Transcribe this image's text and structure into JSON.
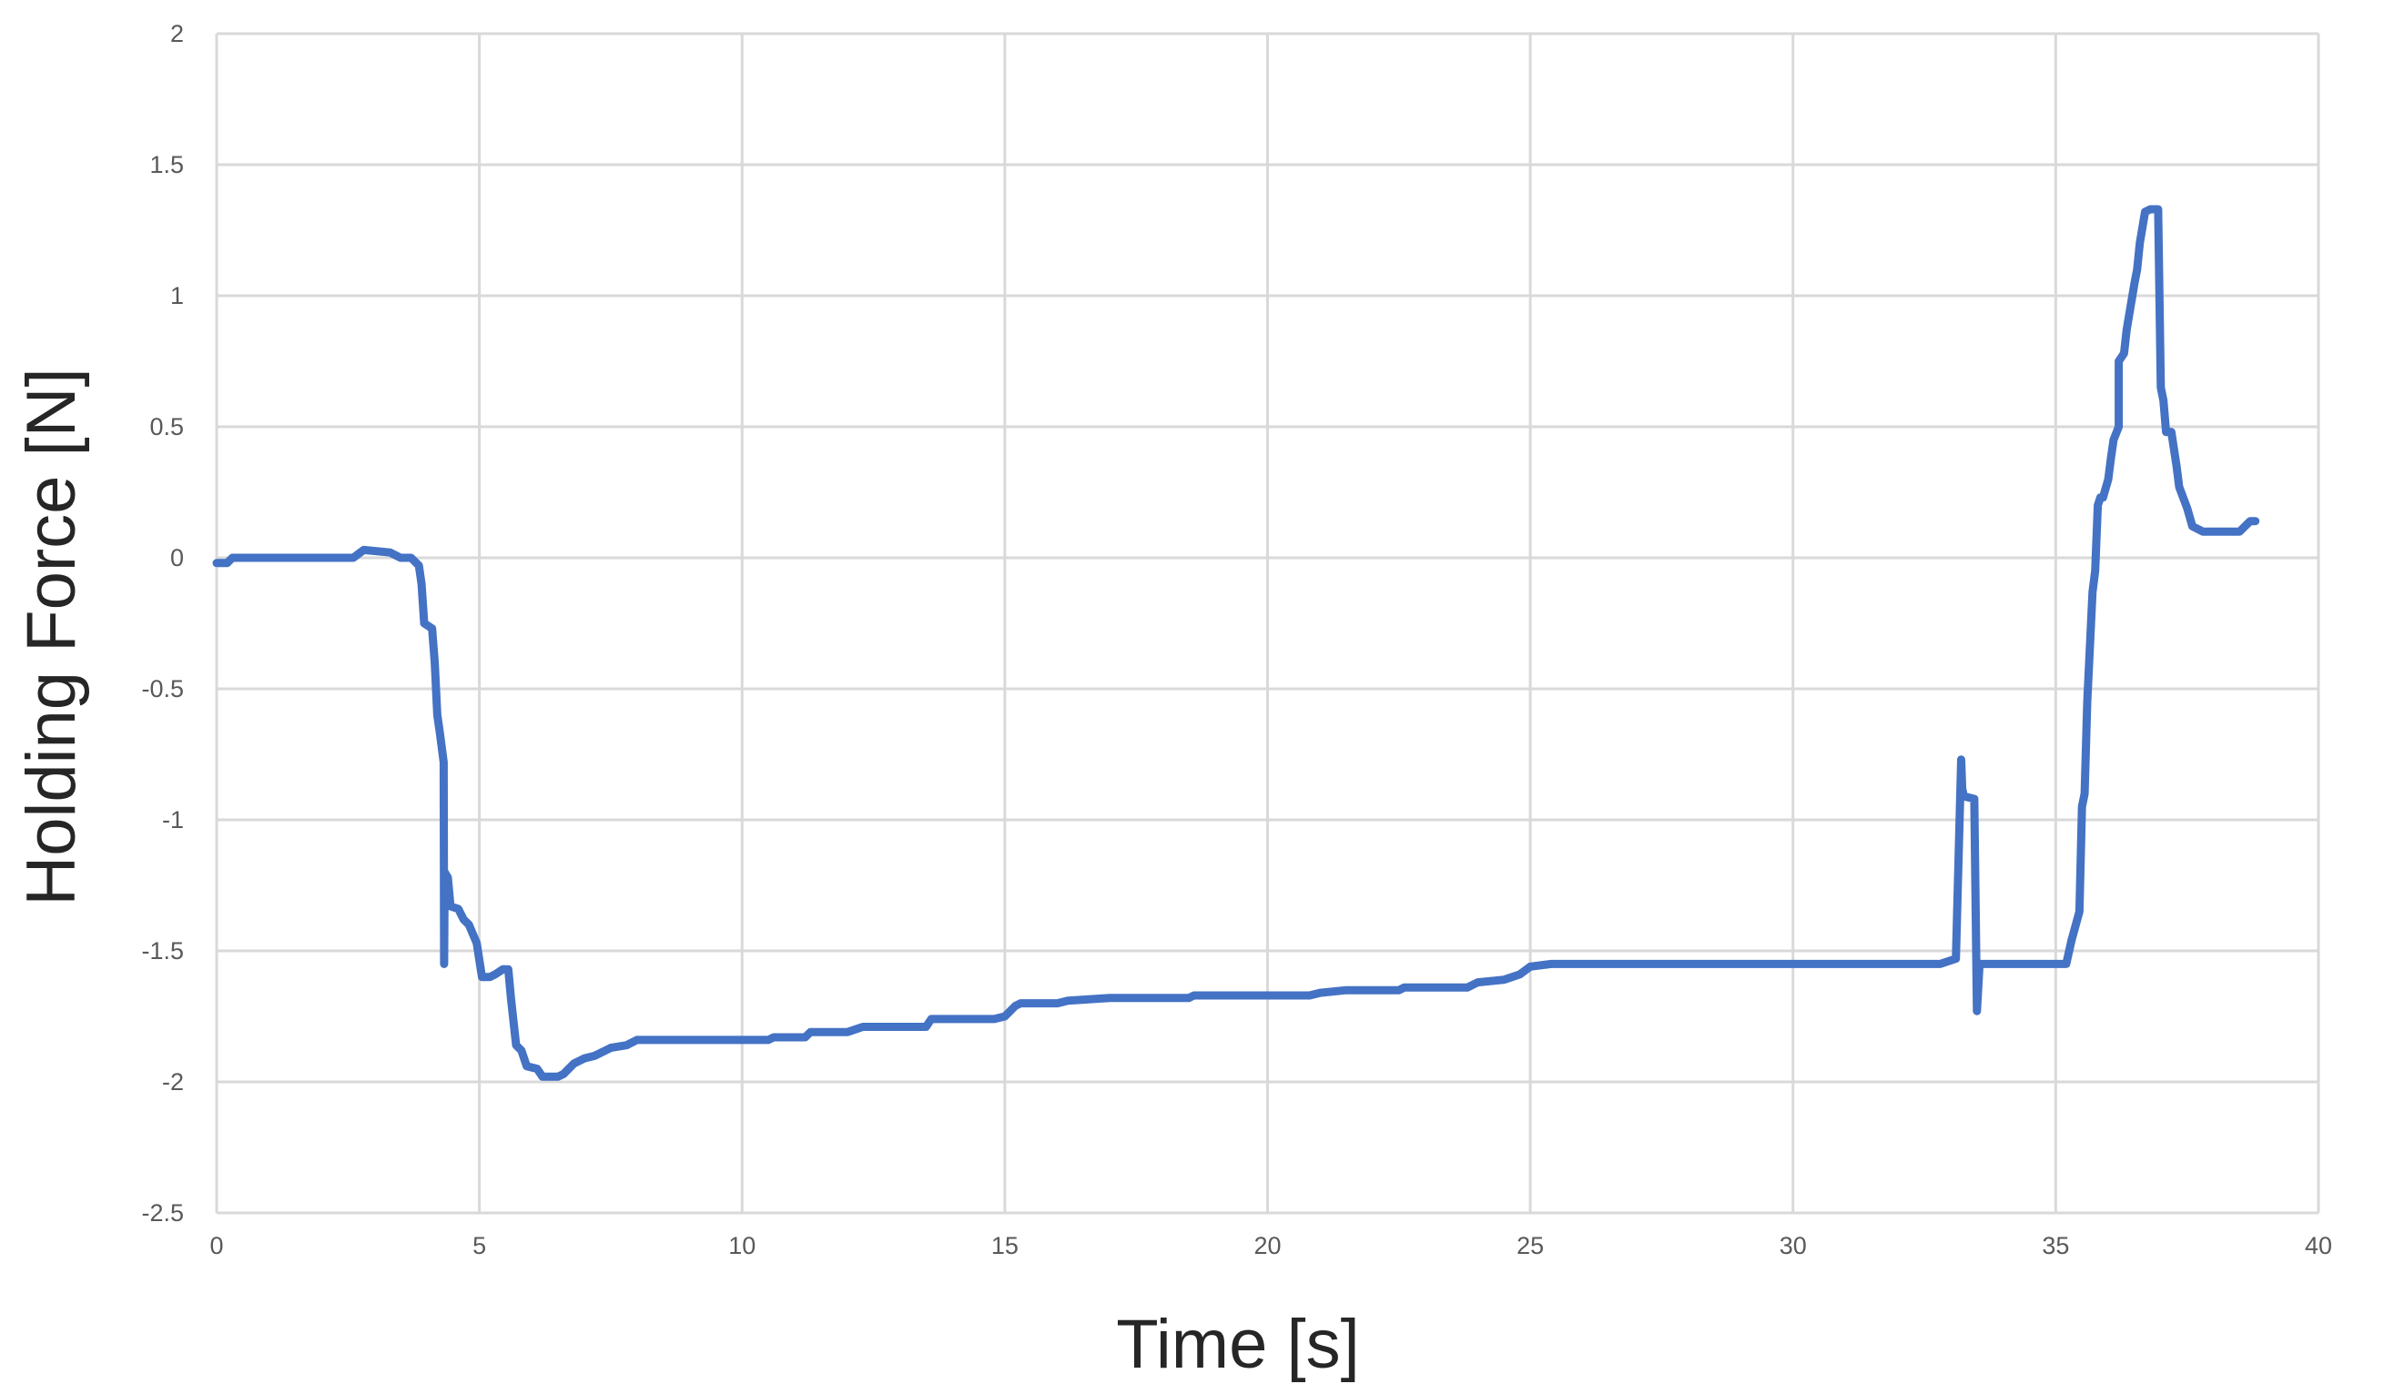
{
  "chart_data": {
    "type": "line",
    "title": "",
    "xlabel": "Time [s]",
    "ylabel": "Holding Force [N]",
    "xlim": [
      0,
      40
    ],
    "ylim": [
      -2.5,
      2
    ],
    "x_ticks": [
      "0",
      "5",
      "10",
      "15",
      "20",
      "25",
      "30",
      "35",
      "40"
    ],
    "y_ticks": [
      "2",
      "1.5",
      "1",
      "0.5",
      "0",
      "-0.5",
      "-1",
      "-1.5",
      "-2",
      "-2.5"
    ],
    "grid": true,
    "legend": "none",
    "series": [
      {
        "color": "#4472c4",
        "points": [
          [
            0.0,
            -0.02
          ],
          [
            0.2,
            -0.02
          ],
          [
            0.3,
            0.0
          ],
          [
            1.0,
            0.0
          ],
          [
            2.6,
            0.0
          ],
          [
            2.8,
            0.03
          ],
          [
            3.3,
            0.02
          ],
          [
            3.5,
            0.0
          ],
          [
            3.7,
            0.0
          ],
          [
            3.85,
            -0.03
          ],
          [
            3.9,
            -0.1
          ],
          [
            3.95,
            -0.25
          ],
          [
            4.1,
            -0.27
          ],
          [
            4.15,
            -0.4
          ],
          [
            4.2,
            -0.6
          ],
          [
            4.25,
            -0.67
          ],
          [
            4.32,
            -0.78
          ],
          [
            4.33,
            -1.55
          ],
          [
            4.34,
            -1.2
          ],
          [
            4.4,
            -1.22
          ],
          [
            4.45,
            -1.33
          ],
          [
            4.6,
            -1.34
          ],
          [
            4.7,
            -1.38
          ],
          [
            4.8,
            -1.4
          ],
          [
            4.95,
            -1.47
          ],
          [
            5.05,
            -1.6
          ],
          [
            5.2,
            -1.6
          ],
          [
            5.3,
            -1.59
          ],
          [
            5.45,
            -1.57
          ],
          [
            5.55,
            -1.57
          ],
          [
            5.6,
            -1.68
          ],
          [
            5.7,
            -1.86
          ],
          [
            5.8,
            -1.88
          ],
          [
            5.9,
            -1.94
          ],
          [
            6.1,
            -1.95
          ],
          [
            6.2,
            -1.98
          ],
          [
            6.5,
            -1.98
          ],
          [
            6.6,
            -1.97
          ],
          [
            6.8,
            -1.93
          ],
          [
            7.0,
            -1.91
          ],
          [
            7.2,
            -1.9
          ],
          [
            7.5,
            -1.87
          ],
          [
            7.8,
            -1.86
          ],
          [
            8.0,
            -1.84
          ],
          [
            10.5,
            -1.84
          ],
          [
            10.6,
            -1.83
          ],
          [
            11.2,
            -1.83
          ],
          [
            11.3,
            -1.81
          ],
          [
            12.0,
            -1.81
          ],
          [
            12.3,
            -1.79
          ],
          [
            13.0,
            -1.79
          ],
          [
            13.5,
            -1.79
          ],
          [
            13.6,
            -1.76
          ],
          [
            14.8,
            -1.76
          ],
          [
            15.0,
            -1.75
          ],
          [
            15.2,
            -1.71
          ],
          [
            15.3,
            -1.7
          ],
          [
            16.0,
            -1.7
          ],
          [
            16.2,
            -1.69
          ],
          [
            17.0,
            -1.68
          ],
          [
            18.5,
            -1.68
          ],
          [
            18.6,
            -1.67
          ],
          [
            20.0,
            -1.67
          ],
          [
            20.8,
            -1.67
          ],
          [
            21.0,
            -1.66
          ],
          [
            21.5,
            -1.65
          ],
          [
            22.5,
            -1.65
          ],
          [
            22.6,
            -1.64
          ],
          [
            23.8,
            -1.64
          ],
          [
            24.0,
            -1.62
          ],
          [
            24.5,
            -1.61
          ],
          [
            24.8,
            -1.59
          ],
          [
            25.0,
            -1.56
          ],
          [
            25.4,
            -1.55
          ],
          [
            27.0,
            -1.55
          ],
          [
            28.0,
            -1.55
          ],
          [
            30.0,
            -1.55
          ],
          [
            31.0,
            -1.55
          ],
          [
            32.0,
            -1.55
          ],
          [
            32.8,
            -1.55
          ],
          [
            33.1,
            -1.53
          ],
          [
            33.2,
            -0.77
          ],
          [
            33.22,
            -0.88
          ],
          [
            33.25,
            -0.91
          ],
          [
            33.45,
            -0.92
          ],
          [
            33.5,
            -1.73
          ],
          [
            33.55,
            -1.55
          ],
          [
            34.2,
            -1.55
          ],
          [
            34.5,
            -1.55
          ],
          [
            34.8,
            -1.55
          ],
          [
            35.2,
            -1.55
          ],
          [
            35.3,
            -1.46
          ],
          [
            35.45,
            -1.35
          ],
          [
            35.5,
            -0.95
          ],
          [
            35.55,
            -0.9
          ],
          [
            35.6,
            -0.55
          ],
          [
            35.7,
            -0.13
          ],
          [
            35.75,
            -0.05
          ],
          [
            35.8,
            0.2
          ],
          [
            35.85,
            0.23
          ],
          [
            35.9,
            0.23
          ],
          [
            36.0,
            0.3
          ],
          [
            36.05,
            0.38
          ],
          [
            36.1,
            0.45
          ],
          [
            36.2,
            0.5
          ],
          [
            36.2,
            0.75
          ],
          [
            36.3,
            0.78
          ],
          [
            36.35,
            0.87
          ],
          [
            36.5,
            1.05
          ],
          [
            36.55,
            1.1
          ],
          [
            36.6,
            1.2
          ],
          [
            36.7,
            1.32
          ],
          [
            36.8,
            1.33
          ],
          [
            36.9,
            1.33
          ],
          [
            36.95,
            1.33
          ],
          [
            37.0,
            0.65
          ],
          [
            37.05,
            0.6
          ],
          [
            37.1,
            0.48
          ],
          [
            37.2,
            0.48
          ],
          [
            37.3,
            0.35
          ],
          [
            37.35,
            0.27
          ],
          [
            37.5,
            0.19
          ],
          [
            37.6,
            0.12
          ],
          [
            37.8,
            0.1
          ],
          [
            38.5,
            0.1
          ],
          [
            38.6,
            0.12
          ],
          [
            38.7,
            0.14
          ],
          [
            38.8,
            0.14
          ]
        ]
      }
    ]
  }
}
